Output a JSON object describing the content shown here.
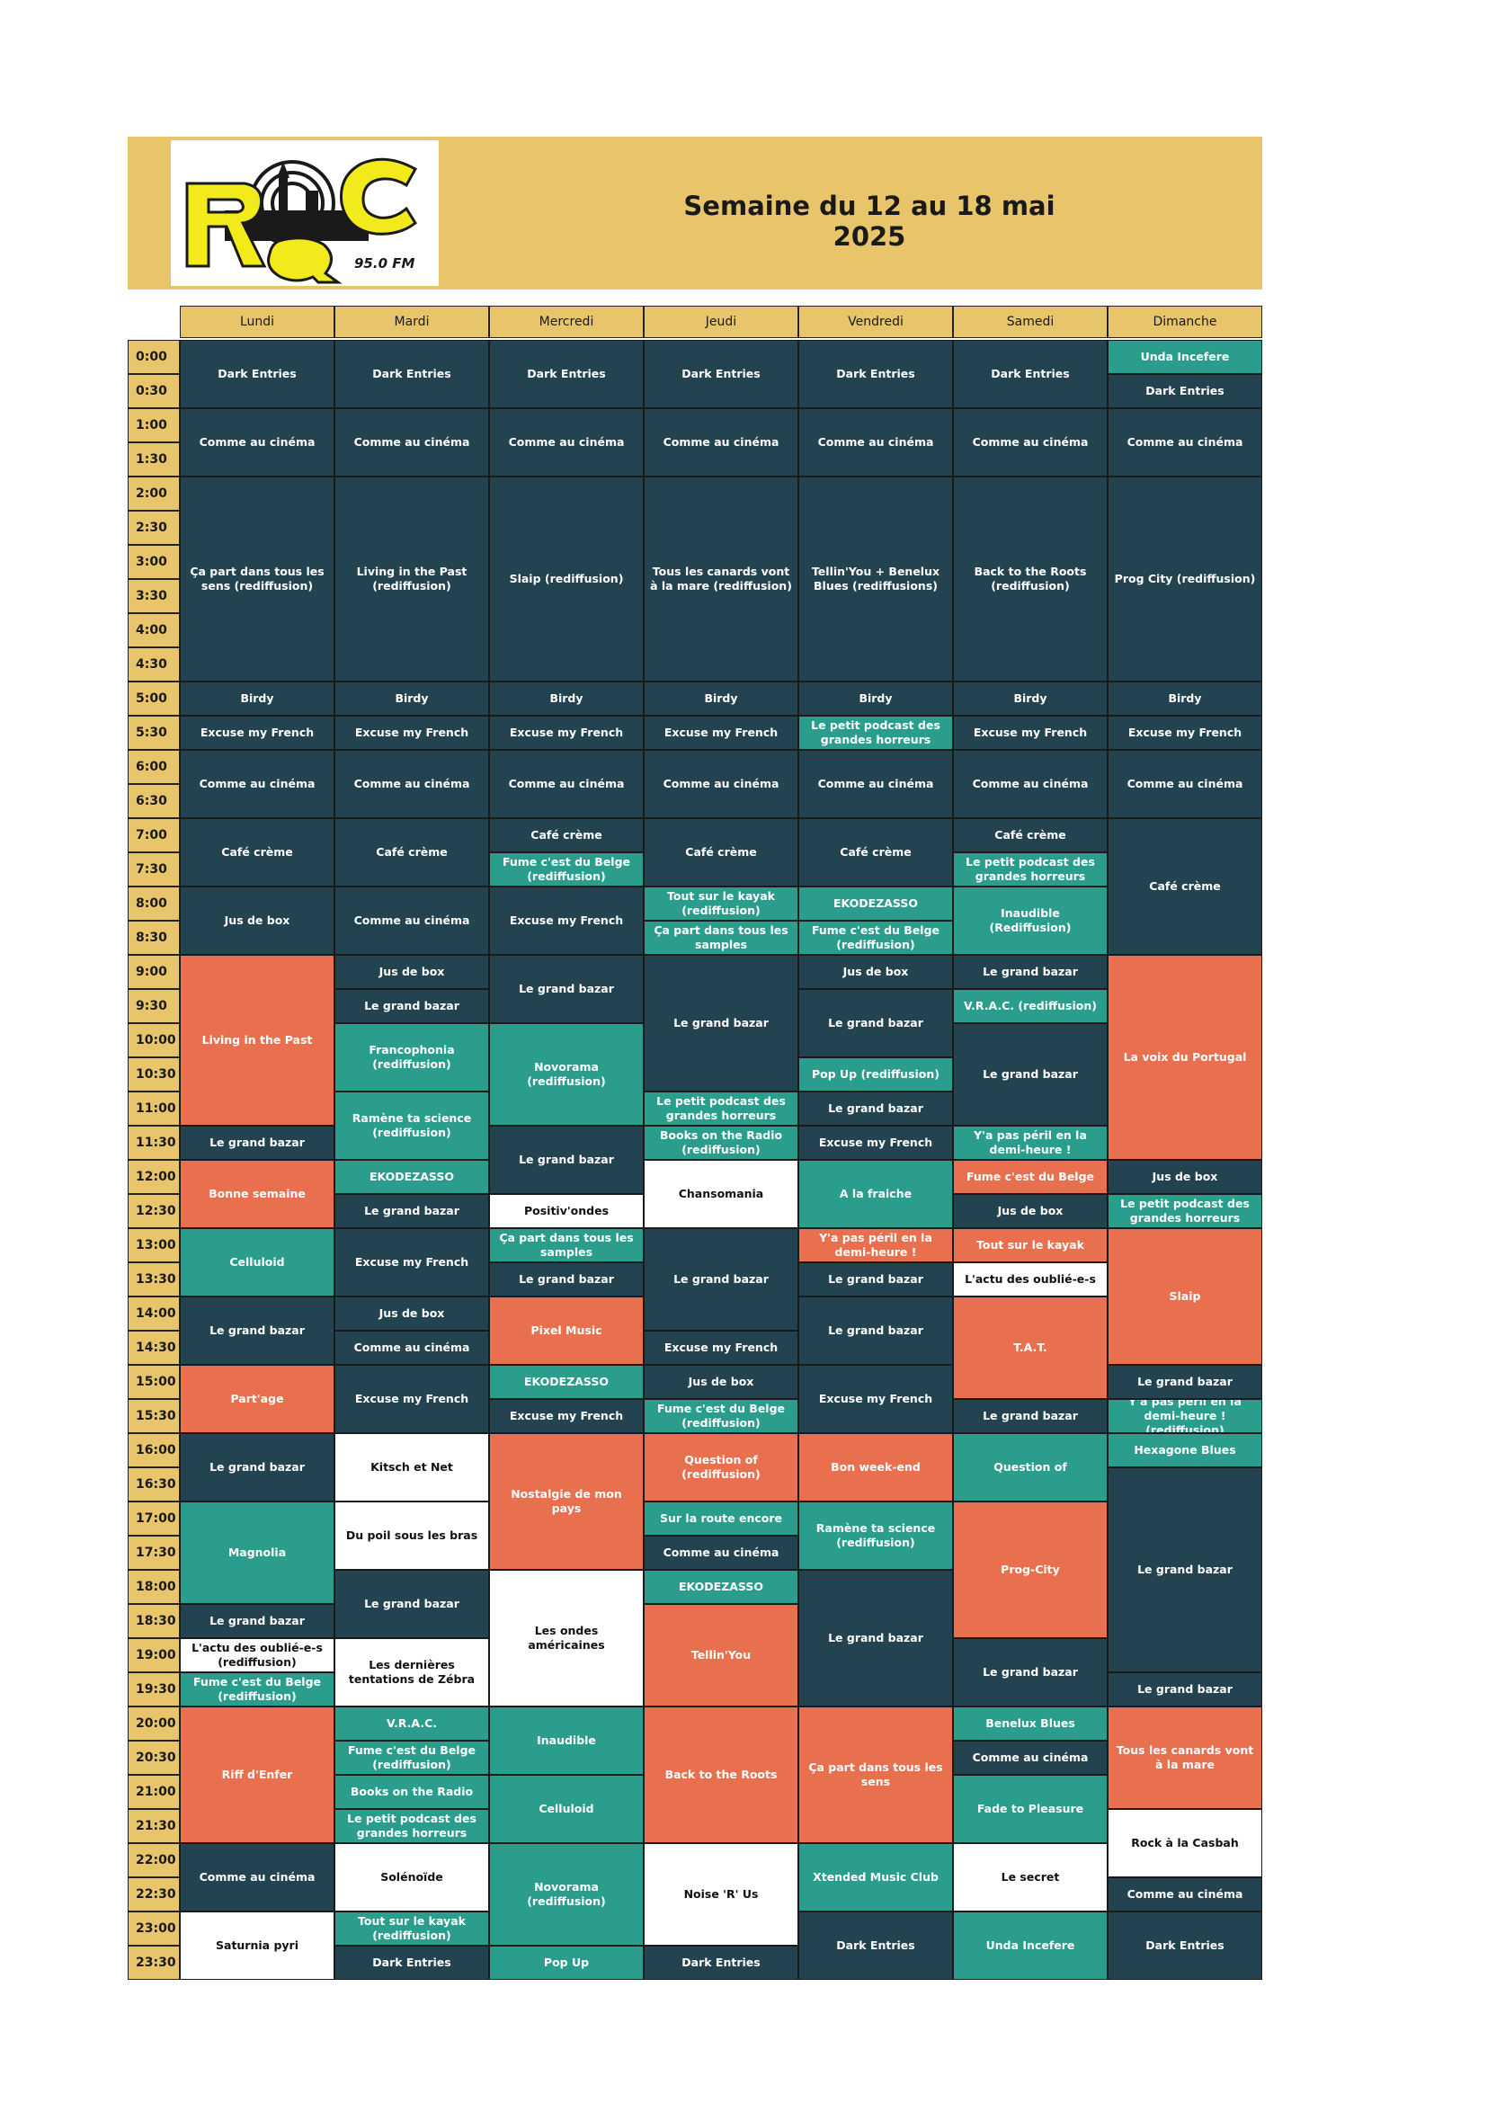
{
  "title": "Semaine du 12 au 18 mai 2025",
  "logo": {
    "text": "ROC",
    "freq": "95.0 FM"
  },
  "colors": {
    "D": "#234350",
    "G": "#2A9D8C",
    "O": "#E8704F",
    "W": "#FFFFFF"
  },
  "days": [
    "Lundi",
    "Mardi",
    "Mercredi",
    "Jeudi",
    "Vendredi",
    "Samedi",
    "Dimanche"
  ],
  "times": [
    "0:00",
    "0:30",
    "1:00",
    "1:30",
    "2:00",
    "2:30",
    "3:00",
    "3:30",
    "4:00",
    "4:30",
    "5:00",
    "5:30",
    "6:00",
    "6:30",
    "7:00",
    "7:30",
    "8:00",
    "8:30",
    "9:00",
    "9:30",
    "10:00",
    "10:30",
    "11:00",
    "11:30",
    "12:00",
    "12:30",
    "13:00",
    "13:30",
    "14:00",
    "14:30",
    "15:00",
    "15:30",
    "16:00",
    "16:30",
    "17:00",
    "17:30",
    "18:00",
    "18:30",
    "19:00",
    "19:30",
    "20:00",
    "20:30",
    "21:00",
    "21:30",
    "22:00",
    "22:30",
    "23:00",
    "23:30"
  ],
  "schedule": [
    [
      {
        "t": "Dark Entries",
        "s": 2,
        "c": "D"
      },
      {
        "t": "Comme au cinéma",
        "s": 2,
        "c": "D"
      },
      {
        "t": "Ça part dans tous les sens (rediffusion)",
        "s": 6,
        "c": "D"
      },
      {
        "t": "Birdy",
        "s": 1,
        "c": "D"
      },
      {
        "t": "Excuse my French",
        "s": 1,
        "c": "D"
      },
      {
        "t": "Comme au cinéma",
        "s": 2,
        "c": "D"
      },
      {
        "t": "Café crème",
        "s": 2,
        "c": "D"
      },
      {
        "t": "Jus de box",
        "s": 2,
        "c": "D"
      },
      {
        "t": "Living in the Past",
        "s": 5,
        "c": "O"
      },
      {
        "t": "Le grand bazar",
        "s": 1,
        "c": "D"
      },
      {
        "t": "Bonne semaine",
        "s": 2,
        "c": "O"
      },
      {
        "t": "Celluloid",
        "s": 2,
        "c": "G"
      },
      {
        "t": "Le grand bazar",
        "s": 2,
        "c": "D"
      },
      {
        "t": "Part'age",
        "s": 2,
        "c": "O"
      },
      {
        "t": "Le grand bazar",
        "s": 2,
        "c": "D"
      },
      {
        "t": "Magnolia",
        "s": 3,
        "c": "G"
      },
      {
        "t": "Le grand bazar",
        "s": 1,
        "c": "D"
      },
      {
        "t": "L'actu des oublié-e-s (rediffusion)",
        "s": 1,
        "c": "W"
      },
      {
        "t": "Fume c'est du Belge (rediffusion)",
        "s": 1,
        "c": "G"
      },
      {
        "t": "Riff d'Enfer",
        "s": 4,
        "c": "O"
      },
      {
        "t": "Comme au cinéma",
        "s": 2,
        "c": "D"
      },
      {
        "t": "Saturnia pyri",
        "s": 2,
        "c": "W"
      }
    ],
    [
      {
        "t": "Dark Entries",
        "s": 2,
        "c": "D"
      },
      {
        "t": "Comme au cinéma",
        "s": 2,
        "c": "D"
      },
      {
        "t": "Living in the Past (rediffusion)",
        "s": 6,
        "c": "D"
      },
      {
        "t": "Birdy",
        "s": 1,
        "c": "D"
      },
      {
        "t": "Excuse my French",
        "s": 1,
        "c": "D"
      },
      {
        "t": "Comme au cinéma",
        "s": 2,
        "c": "D"
      },
      {
        "t": "Café crème",
        "s": 2,
        "c": "D"
      },
      {
        "t": "Comme au cinéma",
        "s": 2,
        "c": "D"
      },
      {
        "t": "Jus de box",
        "s": 1,
        "c": "D"
      },
      {
        "t": "Le grand bazar",
        "s": 1,
        "c": "D"
      },
      {
        "t": "Francophonia (rediffusion)",
        "s": 2,
        "c": "G"
      },
      {
        "t": "Ramène ta science (rediffusion)",
        "s": 2,
        "c": "G"
      },
      {
        "t": "EKODEZASSO",
        "s": 1,
        "c": "G"
      },
      {
        "t": "Le grand bazar",
        "s": 1,
        "c": "D"
      },
      {
        "t": "Excuse my French",
        "s": 2,
        "c": "D"
      },
      {
        "t": "Jus de box",
        "s": 1,
        "c": "D"
      },
      {
        "t": "Comme au cinéma",
        "s": 1,
        "c": "D"
      },
      {
        "t": "Excuse my French",
        "s": 2,
        "c": "D"
      },
      {
        "t": "Kitsch et Net",
        "s": 2,
        "c": "W"
      },
      {
        "t": "Du poil sous les bras",
        "s": 2,
        "c": "W"
      },
      {
        "t": "Le grand bazar",
        "s": 2,
        "c": "D"
      },
      {
        "t": "Les dernières tentations de Zébra",
        "s": 2,
        "c": "W"
      },
      {
        "t": "V.R.A.C.",
        "s": 1,
        "c": "G"
      },
      {
        "t": "Fume c'est du Belge (rediffusion)",
        "s": 1,
        "c": "G"
      },
      {
        "t": "Books on the Radio",
        "s": 1,
        "c": "G"
      },
      {
        "t": "Le petit podcast des grandes horreurs",
        "s": 1,
        "c": "G"
      },
      {
        "t": "Solénoïde",
        "s": 2,
        "c": "W"
      },
      {
        "t": "Tout sur le kayak (rediffusion)",
        "s": 1,
        "c": "G"
      },
      {
        "t": "Dark Entries",
        "s": 1,
        "c": "D"
      }
    ],
    [
      {
        "t": "Dark Entries",
        "s": 2,
        "c": "D"
      },
      {
        "t": "Comme au cinéma",
        "s": 2,
        "c": "D"
      },
      {
        "t": "Slaip (rediffusion)",
        "s": 6,
        "c": "D"
      },
      {
        "t": "Birdy",
        "s": 1,
        "c": "D"
      },
      {
        "t": "Excuse my French",
        "s": 1,
        "c": "D"
      },
      {
        "t": "Comme au cinéma",
        "s": 2,
        "c": "D"
      },
      {
        "t": "Café crème",
        "s": 1,
        "c": "D"
      },
      {
        "t": "Fume c'est du Belge (rediffusion)",
        "s": 1,
        "c": "G"
      },
      {
        "t": "Excuse my French",
        "s": 2,
        "c": "D"
      },
      {
        "t": "Le grand bazar",
        "s": 2,
        "c": "D"
      },
      {
        "t": "Novorama (rediffusion)",
        "s": 3,
        "c": "G"
      },
      {
        "t": "Le grand bazar",
        "s": 2,
        "c": "D"
      },
      {
        "t": "Positiv'ondes",
        "s": 1,
        "c": "W"
      },
      {
        "t": "Ça part dans tous les samples",
        "s": 1,
        "c": "G"
      },
      {
        "t": "Le grand bazar",
        "s": 1,
        "c": "D"
      },
      {
        "t": "Pixel Music",
        "s": 2,
        "c": "O"
      },
      {
        "t": "EKODEZASSO",
        "s": 1,
        "c": "G"
      },
      {
        "t": "Excuse my French",
        "s": 1,
        "c": "D"
      },
      {
        "t": "Nostalgie de mon pays",
        "s": 4,
        "c": "O"
      },
      {
        "t": "Les ondes américaines",
        "s": 4,
        "c": "W"
      },
      {
        "t": "Inaudible",
        "s": 2,
        "c": "G"
      },
      {
        "t": "Celluloid",
        "s": 2,
        "c": "G"
      },
      {
        "t": "Novorama (rediffusion)",
        "s": 3,
        "c": "G"
      },
      {
        "t": "Pop Up",
        "s": 1,
        "c": "G"
      }
    ],
    [
      {
        "t": "Dark Entries",
        "s": 2,
        "c": "D"
      },
      {
        "t": "Comme au cinéma",
        "s": 2,
        "c": "D"
      },
      {
        "t": "Tous les canards vont à la mare (rediffusion)",
        "s": 6,
        "c": "D"
      },
      {
        "t": "Birdy",
        "s": 1,
        "c": "D"
      },
      {
        "t": "Excuse my French",
        "s": 1,
        "c": "D"
      },
      {
        "t": "Comme au cinéma",
        "s": 2,
        "c": "D"
      },
      {
        "t": "Café crème",
        "s": 2,
        "c": "D"
      },
      {
        "t": "Tout sur le kayak (rediffusion)",
        "s": 1,
        "c": "G"
      },
      {
        "t": "Ça part dans tous les samples",
        "s": 1,
        "c": "G"
      },
      {
        "t": "Le grand bazar",
        "s": 4,
        "c": "D"
      },
      {
        "t": "Le petit podcast des grandes horreurs",
        "s": 1,
        "c": "G"
      },
      {
        "t": "Books on the Radio (rediffusion)",
        "s": 1,
        "c": "G"
      },
      {
        "t": "Chansomania",
        "s": 2,
        "c": "W"
      },
      {
        "t": "Le grand bazar",
        "s": 3,
        "c": "D"
      },
      {
        "t": "Excuse my French",
        "s": 1,
        "c": "D"
      },
      {
        "t": "Jus de box",
        "s": 1,
        "c": "D"
      },
      {
        "t": "Fume c'est du Belge (rediffusion)",
        "s": 1,
        "c": "G"
      },
      {
        "t": "Question of (rediffusion)",
        "s": 2,
        "c": "O"
      },
      {
        "t": "Sur la route encore",
        "s": 1,
        "c": "G"
      },
      {
        "t": "Comme au cinéma",
        "s": 1,
        "c": "D"
      },
      {
        "t": "EKODEZASSO",
        "s": 1,
        "c": "G"
      },
      {
        "t": "Tellin'You",
        "s": 3,
        "c": "O"
      },
      {
        "t": "Back to the Roots",
        "s": 4,
        "c": "O"
      },
      {
        "t": "Noise 'R' Us",
        "s": 3,
        "c": "W"
      },
      {
        "t": "Dark Entries",
        "s": 1,
        "c": "D"
      }
    ],
    [
      {
        "t": "Dark Entries",
        "s": 2,
        "c": "D"
      },
      {
        "t": "Comme au cinéma",
        "s": 2,
        "c": "D"
      },
      {
        "t": "Tellin'You + Benelux Blues (rediffusions)",
        "s": 6,
        "c": "D"
      },
      {
        "t": "Birdy",
        "s": 1,
        "c": "D"
      },
      {
        "t": "Le petit podcast des grandes horreurs",
        "s": 1,
        "c": "G"
      },
      {
        "t": "Comme au cinéma",
        "s": 2,
        "c": "D"
      },
      {
        "t": "Café crème",
        "s": 2,
        "c": "D"
      },
      {
        "t": "EKODEZASSO",
        "s": 1,
        "c": "G"
      },
      {
        "t": "Fume c'est du Belge (rediffusion)",
        "s": 1,
        "c": "G"
      },
      {
        "t": "Jus de box",
        "s": 1,
        "c": "D"
      },
      {
        "t": "Le grand bazar",
        "s": 2,
        "c": "D"
      },
      {
        "t": "Pop Up (rediffusion)",
        "s": 1,
        "c": "G"
      },
      {
        "t": "Le grand bazar",
        "s": 1,
        "c": "D"
      },
      {
        "t": "Excuse my French",
        "s": 1,
        "c": "D"
      },
      {
        "t": "A la fraiche",
        "s": 2,
        "c": "G"
      },
      {
        "t": "Y'a pas péril en la demi-heure !",
        "s": 1,
        "c": "O"
      },
      {
        "t": "Le grand bazar",
        "s": 1,
        "c": "D"
      },
      {
        "t": "Le grand bazar",
        "s": 2,
        "c": "D"
      },
      {
        "t": "Excuse my French",
        "s": 2,
        "c": "D"
      },
      {
        "t": "Bon week-end",
        "s": 2,
        "c": "O"
      },
      {
        "t": "Ramène ta science (rediffusion)",
        "s": 2,
        "c": "G"
      },
      {
        "t": "Le grand bazar",
        "s": 4,
        "c": "D"
      },
      {
        "t": "Ça part dans tous les sens",
        "s": 4,
        "c": "O"
      },
      {
        "t": "Xtended Music Club",
        "s": 2,
        "c": "G"
      },
      {
        "t": "Dark Entries",
        "s": 2,
        "c": "D"
      }
    ],
    [
      {
        "t": "Dark Entries",
        "s": 2,
        "c": "D"
      },
      {
        "t": "Comme au cinéma",
        "s": 2,
        "c": "D"
      },
      {
        "t": "Back to the Roots (rediffusion)",
        "s": 6,
        "c": "D"
      },
      {
        "t": "Birdy",
        "s": 1,
        "c": "D"
      },
      {
        "t": "Excuse my French",
        "s": 1,
        "c": "D"
      },
      {
        "t": "Comme au cinéma",
        "s": 2,
        "c": "D"
      },
      {
        "t": "Café crème",
        "s": 1,
        "c": "D"
      },
      {
        "t": "Le petit podcast des grandes horreurs",
        "s": 1,
        "c": "G"
      },
      {
        "t": "Inaudible (Rediffusion)",
        "s": 2,
        "c": "G"
      },
      {
        "t": "Le grand bazar",
        "s": 1,
        "c": "D"
      },
      {
        "t": "V.R.A.C. (rediffusion)",
        "s": 1,
        "c": "G"
      },
      {
        "t": "Le grand bazar",
        "s": 3,
        "c": "D"
      },
      {
        "t": "Y'a pas péril en la demi-heure !",
        "s": 1,
        "c": "G"
      },
      {
        "t": "Fume c'est du Belge",
        "s": 1,
        "c": "O"
      },
      {
        "t": "Jus de box",
        "s": 1,
        "c": "D"
      },
      {
        "t": "Tout sur le kayak",
        "s": 1,
        "c": "O"
      },
      {
        "t": "L'actu des oublié-e-s",
        "s": 1,
        "c": "W"
      },
      {
        "t": "T.A.T.",
        "s": 3,
        "c": "O"
      },
      {
        "t": "Le grand bazar",
        "s": 1,
        "c": "D"
      },
      {
        "t": "Question of",
        "s": 2,
        "c": "G"
      },
      {
        "t": "Prog-City",
        "s": 4,
        "c": "O"
      },
      {
        "t": "Le grand bazar",
        "s": 2,
        "c": "D"
      },
      {
        "t": "Benelux Blues",
        "s": 1,
        "c": "G"
      },
      {
        "t": "Comme au cinéma",
        "s": 1,
        "c": "D"
      },
      {
        "t": "Fade to Pleasure",
        "s": 2,
        "c": "G"
      },
      {
        "t": "Le secret",
        "s": 2,
        "c": "W"
      },
      {
        "t": "Unda Incefere",
        "s": 2,
        "c": "G"
      }
    ],
    [
      {
        "t": "Unda Incefere",
        "s": 1,
        "c": "G"
      },
      {
        "t": "Dark Entries",
        "s": 1,
        "c": "D"
      },
      {
        "t": "Comme au cinéma",
        "s": 2,
        "c": "D"
      },
      {
        "t": "Prog City (rediffusion)",
        "s": 6,
        "c": "D"
      },
      {
        "t": "Birdy",
        "s": 1,
        "c": "D"
      },
      {
        "t": "Excuse my French",
        "s": 1,
        "c": "D"
      },
      {
        "t": "Comme au cinéma",
        "s": 2,
        "c": "D"
      },
      {
        "t": "Café crème",
        "s": 4,
        "c": "D"
      },
      {
        "t": "La voix du Portugal",
        "s": 6,
        "c": "O"
      },
      {
        "t": "Jus de box",
        "s": 1,
        "c": "D"
      },
      {
        "t": "Le petit podcast des grandes horreurs",
        "s": 1,
        "c": "G"
      },
      {
        "t": "Slaip",
        "s": 4,
        "c": "O"
      },
      {
        "t": "Le grand bazar",
        "s": 1,
        "c": "D"
      },
      {
        "t": "Y'a pas péril en la demi-heure ! (rediffusion)",
        "s": 1,
        "c": "G"
      },
      {
        "t": "Hexagone Blues",
        "s": 1,
        "c": "G"
      },
      {
        "t": "Le grand bazar",
        "s": 6,
        "c": "D"
      },
      {
        "t": "Le grand bazar",
        "s": 1,
        "c": "D"
      },
      {
        "t": "Tous les canards vont à la mare",
        "s": 3,
        "c": "O"
      },
      {
        "t": "Rock à la Casbah",
        "s": 2,
        "c": "W"
      },
      {
        "t": "Comme au cinéma",
        "s": 1,
        "c": "D"
      },
      {
        "t": "Dark Entries",
        "s": 2,
        "c": "D"
      }
    ]
  ]
}
